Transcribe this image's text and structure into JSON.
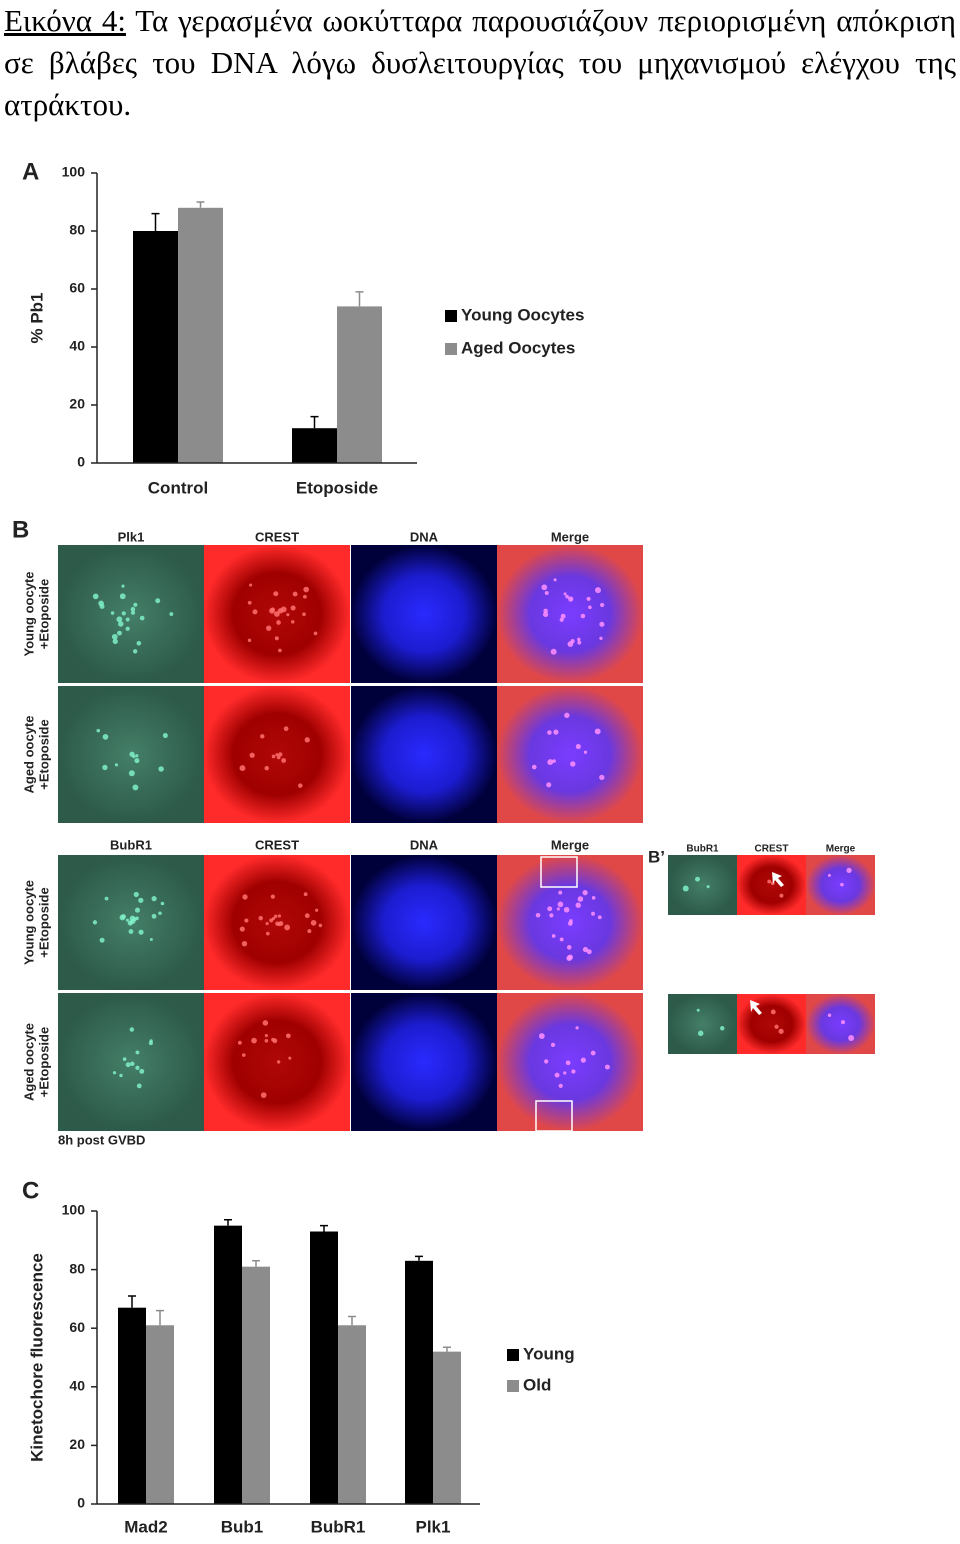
{
  "caption": {
    "label": "Εικόνα 4:",
    "text": "Τα γερασμένα ωοκύτταρα παρουσιάζουν περιορισμένη απόκριση σε βλάβες του DNA λόγω δυσλειτουργίας του μηχανισμού ελέγχου της ατράκτου."
  },
  "chart_data": [
    {
      "type": "bar",
      "panel": "A",
      "y_label": "% Pb1",
      "categories": [
        "Control",
        "Etoposide"
      ],
      "series": [
        {
          "name": "Young Oocytes",
          "color": "#000000",
          "values": [
            80,
            12
          ],
          "errors": [
            6,
            4
          ]
        },
        {
          "name": "Aged Oocytes",
          "color": "#8c8c8c",
          "values": [
            88,
            54
          ],
          "errors": [
            2,
            5
          ]
        }
      ],
      "ylim": [
        0,
        100
      ],
      "yticks": [
        0,
        20,
        40,
        60,
        80,
        100
      ]
    },
    {
      "type": "bar",
      "panel": "C",
      "y_label": "Kinetochore fluorescence",
      "categories": [
        "Mad2",
        "Bub1",
        "BubR1",
        "Plk1"
      ],
      "series": [
        {
          "name": "Young",
          "color": "#000000",
          "values": [
            67,
            95,
            93,
            83
          ],
          "errors": [
            4,
            2,
            2,
            1.5
          ]
        },
        {
          "name": "Old",
          "color": "#8c8c8c",
          "values": [
            61,
            81,
            61,
            52
          ],
          "errors": [
            5,
            2,
            3,
            1.5
          ]
        }
      ],
      "ylim": [
        0,
        100
      ],
      "yticks": [
        0,
        20,
        40,
        60,
        80,
        100
      ]
    }
  ],
  "panel_b": {
    "panel": "B",
    "header_sets": [
      [
        "Plk1",
        "CREST",
        "DNA",
        "Merge"
      ],
      [
        "BubR1",
        "CREST",
        "DNA",
        "Merge"
      ]
    ],
    "rows": [
      [
        "Young oocyte",
        "+Etoposide"
      ],
      [
        "Aged oocyte",
        "+Etoposide"
      ],
      [
        "Young oocyte",
        "+Etoposide"
      ],
      [
        "Aged oocyte",
        "+Etoposide"
      ]
    ],
    "footer": "8h post GVBD",
    "inset": {
      "panel": "B’",
      "headers": [
        "BubR1",
        "CREST",
        "Merge"
      ]
    }
  }
}
